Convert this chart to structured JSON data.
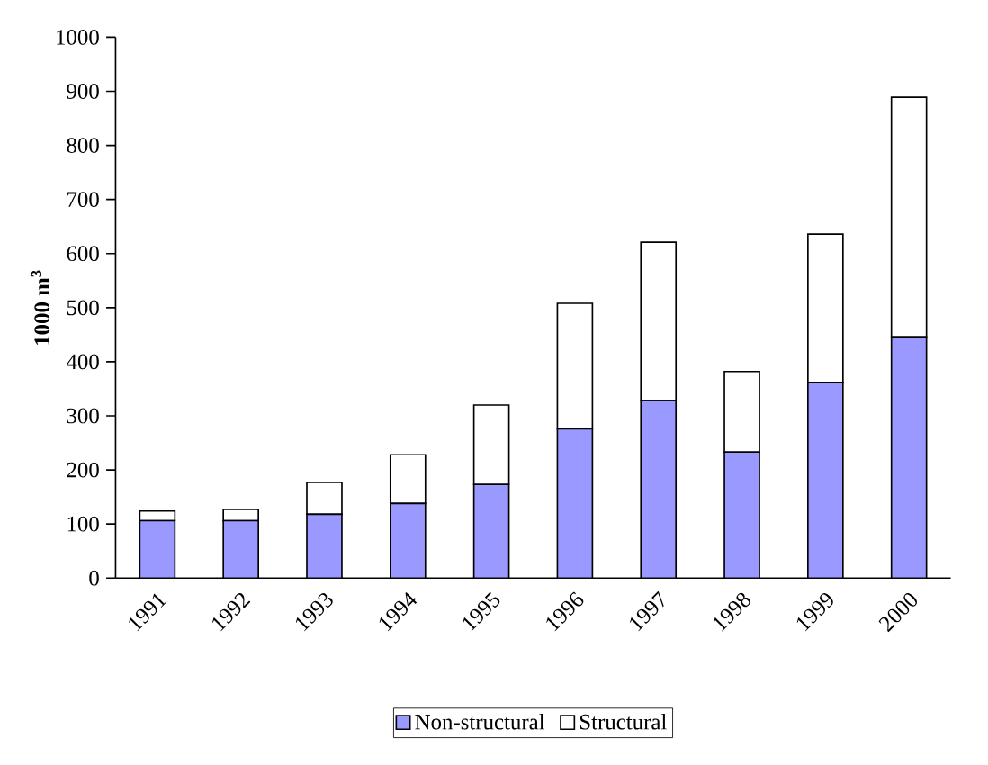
{
  "chart_data": {
    "type": "bar",
    "stacked": true,
    "ylabel": "**1000 m$^{3}$**",
    "categories": [
      "1991",
      "1992",
      "1993",
      "1994",
      "1995",
      "1996",
      "1997",
      "1998",
      "1999",
      "2000"
    ],
    "series": [
      {
        "name": "Non-structural",
        "color": "#9999ff",
        "values": [
          106,
          106,
          118,
          138,
          173,
          276,
          328,
          233,
          362,
          446
        ]
      },
      {
        "name": "Structural",
        "color": "#ffffff",
        "values": [
          18,
          21,
          59,
          90,
          147,
          232,
          293,
          149,
          274,
          443
        ]
      }
    ],
    "ylim": [
      0,
      1000
    ],
    "yticks": [
      0,
      100,
      200,
      300,
      400,
      500,
      600,
      700,
      800,
      900,
      1000
    ],
    "legend": "bottom"
  }
}
